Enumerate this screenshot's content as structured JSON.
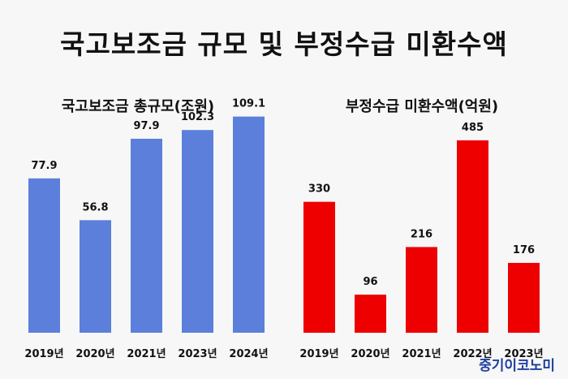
{
  "title": "국고보조금 규모 및 부정수급 미환수액",
  "watermark": "중기이코노미",
  "colors": {
    "blue_bar": "#5b7fdb",
    "red_bar": "#ee0000",
    "background": "#f7f7f7"
  },
  "chart_data": [
    {
      "type": "bar",
      "title": "국고보조금 총규모(조원)",
      "categories": [
        "2019년",
        "2020년",
        "2021년",
        "2023년",
        "2024년"
      ],
      "values": [
        77.9,
        56.8,
        97.9,
        102.3,
        109.1
      ],
      "value_labels": [
        "77.9",
        "56.8",
        "97.9",
        "102.3",
        "109.1"
      ],
      "color": "#5b7fdb",
      "ylim": [
        0,
        120
      ],
      "grid": false
    },
    {
      "type": "bar",
      "title": "부정수급 미환수액(억원)",
      "categories": [
        "2019년",
        "2020년",
        "2021년",
        "2022년",
        "2023년"
      ],
      "values": [
        330,
        96,
        216,
        485,
        176
      ],
      "value_labels": [
        "330",
        "96",
        "216",
        "485",
        "176"
      ],
      "color": "#ee0000",
      "ylim": [
        0,
        540
      ],
      "grid": false
    }
  ]
}
